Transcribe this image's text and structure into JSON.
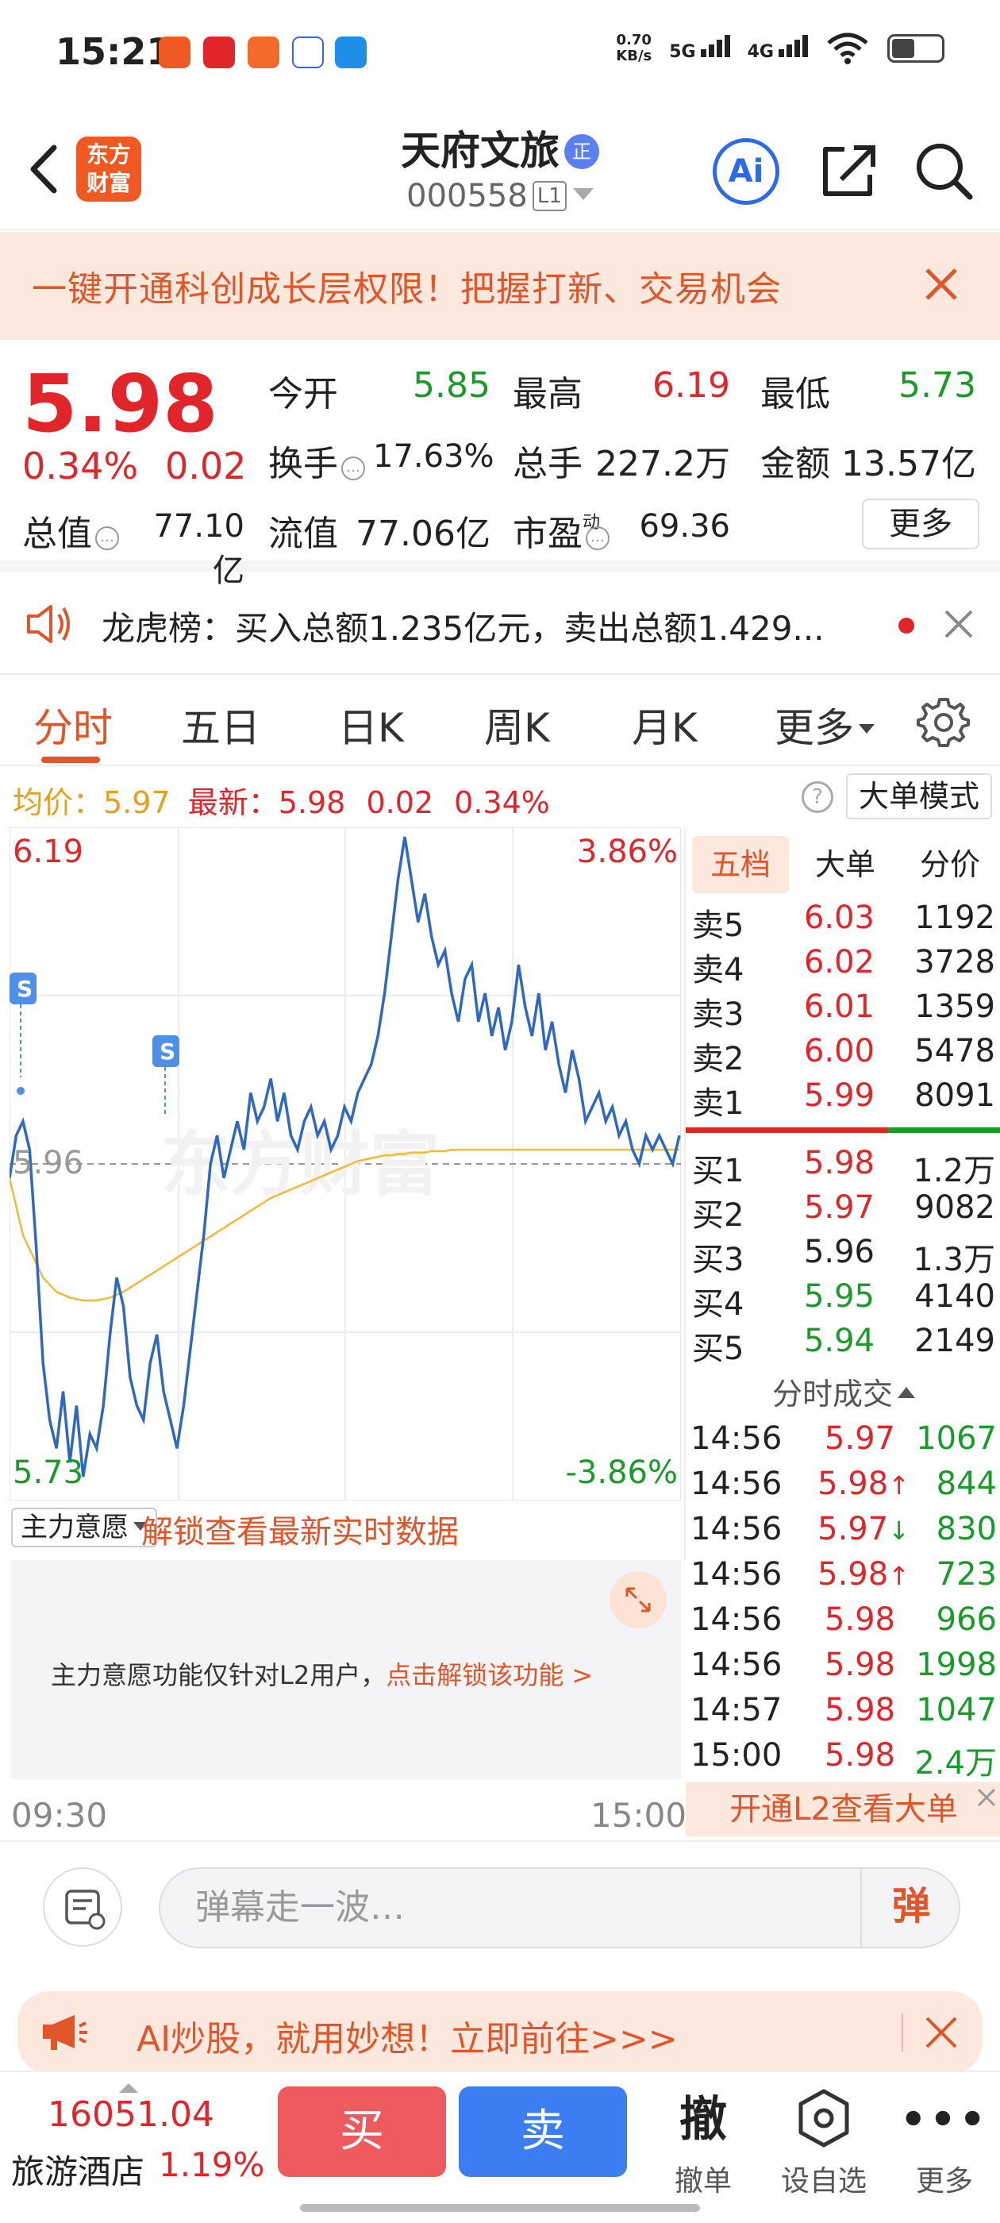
{
  "status_bar": {
    "time": "15:21",
    "net_speed_value": "0.70",
    "net_speed_unit": "KB/s",
    "sig1": "5G",
    "sig2": "4G",
    "icons": [
      "app-icon-1",
      "app-icon-2",
      "app-icon-3",
      "app-icon-4",
      "app-icon-5",
      "wifi-icon",
      "battery-icon"
    ]
  },
  "header": {
    "logo_line1": "东方",
    "logo_line2": "财富",
    "stock_name": "天府文旅",
    "badge": "正",
    "code": "000558",
    "level": "L1",
    "ai_label": "Ai"
  },
  "banner": {
    "text": "一键开通科创成长层权限！把握打新、交易机会"
  },
  "quote": {
    "price": "5.98",
    "change_pct": "0.34%",
    "change": "0.02",
    "open_label": "今开",
    "open": "5.85",
    "high_label": "最高",
    "high": "6.19",
    "low_label": "最低",
    "low": "5.73",
    "turnover_label": "换手",
    "turnover": "17.63%",
    "volume_label": "总手",
    "volume": "227.2万",
    "amount_label": "金额",
    "amount": "13.57亿",
    "mktcap_label": "总值",
    "mktcap": "77.10亿",
    "float_label": "流值",
    "float": "77.06亿",
    "pe_label": "市盈",
    "pe_sup": "动",
    "pe": "69.36",
    "more": "更多"
  },
  "dragon_tiger": {
    "text": "龙虎榜：买入总额1.235亿元，卖出总额1.429..."
  },
  "tabs": [
    {
      "label": "分时"
    },
    {
      "label": "五日"
    },
    {
      "label": "日K"
    },
    {
      "label": "周K"
    },
    {
      "label": "月K"
    },
    {
      "label": "更多"
    }
  ],
  "avg_bar": {
    "avg_label": "均价：",
    "avg": "5.97",
    "latest_label": "最新：",
    "latest": "5.98",
    "chg": "0.02",
    "pct": "0.34%",
    "help": "?",
    "big_mode": "大单模式"
  },
  "chart": {
    "y_top": "6.19",
    "y_bottom": "5.73",
    "pct_top": "3.86%",
    "pct_bottom": "-3.86%",
    "y_mid": "5.96",
    "t_start": "09:30",
    "t_end": "15:00",
    "s_marker": "S",
    "watermark": "东方财富"
  },
  "chart_data": {
    "type": "line",
    "title": "",
    "xlabel": "",
    "ylabel": "",
    "ylim": [
      5.73,
      6.19
    ],
    "x_range": [
      "09:30",
      "15:00"
    ],
    "prev_close": 5.96,
    "grid": true,
    "series": [
      {
        "values": [
          5.95,
          5.98,
          5.99,
          5.97,
          5.9,
          5.82,
          5.78,
          5.76,
          5.8,
          5.75,
          5.79,
          5.74,
          5.77,
          5.76,
          5.79,
          5.84,
          5.88,
          5.86,
          5.81,
          5.79,
          5.78,
          5.82,
          5.84,
          5.8,
          5.78,
          5.76,
          5.79,
          5.83,
          5.87,
          5.91,
          5.96,
          5.98,
          5.95,
          5.97,
          5.99,
          5.97,
          6.01,
          5.99,
          6.0,
          6.02,
          5.99,
          6.01,
          5.98,
          5.97,
          5.99,
          6.0,
          5.98,
          5.99,
          5.97,
          5.98,
          6.0,
          5.99,
          6.01,
          6.02,
          6.03,
          6.05,
          6.08,
          6.12,
          6.16,
          6.19,
          6.16,
          6.13,
          6.15,
          6.12,
          6.1,
          6.11,
          6.08,
          6.06,
          6.09,
          6.1,
          6.06,
          6.08,
          6.05,
          6.07,
          6.04,
          6.06,
          6.1,
          6.07,
          6.05,
          6.08,
          6.04,
          6.06,
          6.03,
          6.01,
          6.04,
          6.02,
          5.99,
          6.0,
          6.01,
          5.99,
          6.0,
          5.98,
          5.99,
          5.97,
          5.96,
          5.98,
          5.97,
          5.98,
          5.97,
          5.96,
          5.98
        ]
      },
      {
        "values": [
          5.95,
          5.93,
          5.91,
          5.9,
          5.89,
          5.88,
          5.875,
          5.87,
          5.868,
          5.866,
          5.865,
          5.864,
          5.864,
          5.864,
          5.865,
          5.866,
          5.868,
          5.87,
          5.873,
          5.876,
          5.879,
          5.882,
          5.885,
          5.888,
          5.891,
          5.894,
          5.897,
          5.9,
          5.903,
          5.906,
          5.909,
          5.912,
          5.915,
          5.918,
          5.921,
          5.924,
          5.927,
          5.93,
          5.933,
          5.936,
          5.938,
          5.94,
          5.942,
          5.944,
          5.946,
          5.948,
          5.95,
          5.952,
          5.954,
          5.956,
          5.958,
          5.96,
          5.962,
          5.963,
          5.964,
          5.965,
          5.966,
          5.966,
          5.967,
          5.967,
          5.968,
          5.968,
          5.968,
          5.969,
          5.969,
          5.969,
          5.97,
          5.97,
          5.97,
          5.97,
          5.97,
          5.97,
          5.97,
          5.97,
          5.97,
          5.97,
          5.97,
          5.97,
          5.97,
          5.97,
          5.97,
          5.97,
          5.97,
          5.97,
          5.97,
          5.97,
          5.97,
          5.97,
          5.97,
          5.97,
          5.97,
          5.97,
          5.97,
          5.97,
          5.97,
          5.97,
          5.97,
          5.97,
          5.97,
          5.97,
          5.97
        ]
      }
    ]
  },
  "order_book": {
    "tabs": [
      "五档",
      "大单",
      "分价"
    ],
    "asks": [
      {
        "label": "卖5",
        "price": "6.03",
        "vol": "1192",
        "color": "#e0262b"
      },
      {
        "label": "卖4",
        "price": "6.02",
        "vol": "3728",
        "color": "#e0262b"
      },
      {
        "label": "卖3",
        "price": "6.01",
        "vol": "1359",
        "color": "#e0262b"
      },
      {
        "label": "卖2",
        "price": "6.00",
        "vol": "5478",
        "color": "#e0262b"
      },
      {
        "label": "卖1",
        "price": "5.99",
        "vol": "8091",
        "color": "#e0262b"
      }
    ],
    "bids": [
      {
        "label": "买1",
        "price": "5.98",
        "vol": "1.2万",
        "color": "#e0262b"
      },
      {
        "label": "买2",
        "price": "5.97",
        "vol": "9082",
        "color": "#e0262b"
      },
      {
        "label": "买3",
        "price": "5.96",
        "vol": "1.3万",
        "color": "#222222"
      },
      {
        "label": "买4",
        "price": "5.95",
        "vol": "4140",
        "color": "#1a9a2a"
      },
      {
        "label": "买5",
        "price": "5.94",
        "vol": "2149",
        "color": "#1a9a2a"
      }
    ],
    "ticks_title": "分时成交",
    "ticks": [
      {
        "time": "14:56",
        "price": "5.97",
        "dir": "",
        "vol": "1067"
      },
      {
        "time": "14:56",
        "price": "5.98",
        "dir": "↑",
        "vol": "844"
      },
      {
        "time": "14:56",
        "price": "5.97",
        "dir": "↓",
        "vol": "830"
      },
      {
        "time": "14:56",
        "price": "5.98",
        "dir": "↑",
        "vol": "723"
      },
      {
        "time": "14:56",
        "price": "5.98",
        "dir": "",
        "vol": "966"
      },
      {
        "time": "14:56",
        "price": "5.98",
        "dir": "",
        "vol": "1998"
      },
      {
        "time": "14:57",
        "price": "5.98",
        "dir": "",
        "vol": "1047"
      },
      {
        "time": "15:00",
        "price": "5.98",
        "dir": "",
        "vol": "2.4万"
      }
    ],
    "l2_bar": "开通L2查看大单"
  },
  "force": {
    "select": "主力意愿",
    "unlock": "解锁查看最新实时数据",
    "msg": "主力意愿功能仅针对L2用户，",
    "msg_link": "点击解锁该功能 >"
  },
  "danmaku": {
    "placeholder": "弹幕走一波…",
    "btn": "弹"
  },
  "ai_banner": {
    "text": "AI炒股，就用妙想！立即前往>>>"
  },
  "bottom": {
    "index_value": "16051.04",
    "index_name": "旅游酒店",
    "index_pct": "1.19%",
    "buy": "买",
    "sell": "卖",
    "cancel_big": "撤",
    "cancel": "撤单",
    "watch": "设自选",
    "more": "更多"
  }
}
